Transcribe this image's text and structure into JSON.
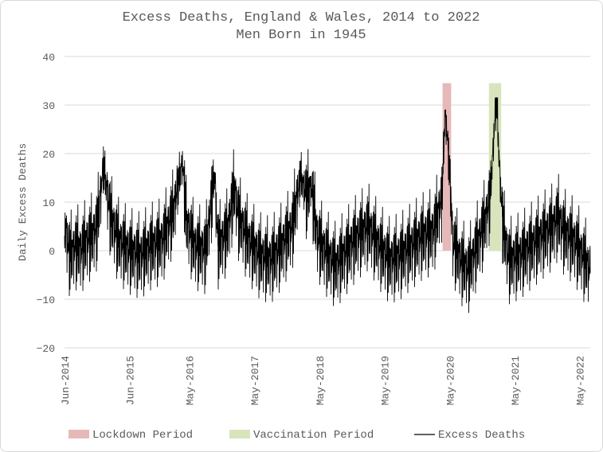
{
  "chart_data": {
    "type": "line",
    "title": "Excess Deaths, England & Wales, 2014 to 2022",
    "subtitle": "Men Born in 1945",
    "xlabel": "",
    "ylabel": "Daily Excess Deaths",
    "ylim": [
      -20,
      40
    ],
    "y_ticks": [
      "40",
      "30",
      "20",
      "10",
      "0",
      "−10",
      "−20"
    ],
    "y_tick_values": [
      40,
      30,
      20,
      10,
      0,
      -10,
      -20
    ],
    "x_range": [
      "2014-06-01",
      "2022-06-30"
    ],
    "x_ticks": [
      {
        "label": "Jun-2014",
        "date": "2014-06-01"
      },
      {
        "label": "Jun-2015",
        "date": "2015-06-01"
      },
      {
        "label": "May-2016",
        "date": "2016-05-01"
      },
      {
        "label": "May-2017",
        "date": "2017-05-01"
      },
      {
        "label": "May-2018",
        "date": "2018-05-01"
      },
      {
        "label": "May-2019",
        "date": "2019-05-01"
      },
      {
        "label": "May-2020",
        "date": "2020-05-01"
      },
      {
        "label": "May-2021",
        "date": "2021-05-01"
      },
      {
        "label": "May-2022",
        "date": "2022-05-01"
      }
    ],
    "grid": true,
    "legend_position": "bottom",
    "shaded_periods": [
      {
        "name": "Lockdown Period",
        "start": "2020-03-23",
        "end": "2020-05-10",
        "ymin": 0,
        "ymax": 34.5,
        "color": "#e6b8b7"
      },
      {
        "name": "Vaccination Period",
        "start": "2020-12-08",
        "end": "2021-02-15",
        "ymin": 0,
        "ymax": 34.5,
        "color": "#d8e4bc"
      }
    ],
    "series": [
      {
        "name": "Excess Deaths",
        "color": "#000000",
        "summary": {
          "baseline_mean": 0.5,
          "noise_sd": 3.5,
          "min": -14,
          "max": 31.5
        },
        "points": [
          {
            "date": "2014-06-01",
            "value": 5
          },
          {
            "date": "2014-07-01",
            "value": -2
          },
          {
            "date": "2014-08-01",
            "value": 0
          },
          {
            "date": "2014-09-01",
            "value": -1
          },
          {
            "date": "2014-10-01",
            "value": 1
          },
          {
            "date": "2014-11-01",
            "value": 2
          },
          {
            "date": "2014-12-01",
            "value": 4
          },
          {
            "date": "2015-01-05",
            "value": 17
          },
          {
            "date": "2015-01-20",
            "value": 13
          },
          {
            "date": "2015-02-15",
            "value": 6
          },
          {
            "date": "2015-04-01",
            "value": 1
          },
          {
            "date": "2015-06-01",
            "value": -1
          },
          {
            "date": "2015-08-01",
            "value": -2
          },
          {
            "date": "2015-10-01",
            "value": 0
          },
          {
            "date": "2015-12-01",
            "value": 1
          },
          {
            "date": "2016-02-01",
            "value": 7
          },
          {
            "date": "2016-03-10",
            "value": 15
          },
          {
            "date": "2016-03-25",
            "value": 18
          },
          {
            "date": "2016-04-15",
            "value": 5
          },
          {
            "date": "2016-06-01",
            "value": 0
          },
          {
            "date": "2016-08-01",
            "value": -1
          },
          {
            "date": "2016-09-20",
            "value": 15
          },
          {
            "date": "2016-10-10",
            "value": 0
          },
          {
            "date": "2016-12-01",
            "value": 3
          },
          {
            "date": "2017-01-10",
            "value": 12
          },
          {
            "date": "2017-02-01",
            "value": 6
          },
          {
            "date": "2017-04-01",
            "value": 1
          },
          {
            "date": "2017-06-01",
            "value": -2
          },
          {
            "date": "2017-08-01",
            "value": -3
          },
          {
            "date": "2017-10-01",
            "value": 0
          },
          {
            "date": "2017-12-01",
            "value": 4
          },
          {
            "date": "2018-01-15",
            "value": 15
          },
          {
            "date": "2018-02-20",
            "value": 10
          },
          {
            "date": "2018-03-15",
            "value": 13
          },
          {
            "date": "2018-04-20",
            "value": 2
          },
          {
            "date": "2018-06-01",
            "value": -1
          },
          {
            "date": "2018-08-01",
            "value": -4
          },
          {
            "date": "2018-10-01",
            "value": -1
          },
          {
            "date": "2018-12-01",
            "value": 2
          },
          {
            "date": "2019-02-01",
            "value": 4
          },
          {
            "date": "2019-04-01",
            "value": 0
          },
          {
            "date": "2019-06-01",
            "value": -3
          },
          {
            "date": "2019-08-01",
            "value": -2
          },
          {
            "date": "2019-10-01",
            "value": 0
          },
          {
            "date": "2019-12-01",
            "value": 2
          },
          {
            "date": "2020-02-01",
            "value": 3
          },
          {
            "date": "2020-03-20",
            "value": 10
          },
          {
            "date": "2020-04-05",
            "value": 27
          },
          {
            "date": "2020-04-15",
            "value": 25
          },
          {
            "date": "2020-05-01",
            "value": 16
          },
          {
            "date": "2020-05-20",
            "value": 1
          },
          {
            "date": "2020-07-01",
            "value": -3
          },
          {
            "date": "2020-08-15",
            "value": -5
          },
          {
            "date": "2020-10-01",
            "value": 0
          },
          {
            "date": "2020-11-15",
            "value": 5
          },
          {
            "date": "2020-12-15",
            "value": 10
          },
          {
            "date": "2021-01-12",
            "value": 28
          },
          {
            "date": "2021-01-20",
            "value": 31
          },
          {
            "date": "2021-02-05",
            "value": 17
          },
          {
            "date": "2021-02-25",
            "value": 4
          },
          {
            "date": "2021-04-01",
            "value": -3
          },
          {
            "date": "2021-06-01",
            "value": -2
          },
          {
            "date": "2021-08-01",
            "value": 0
          },
          {
            "date": "2021-10-01",
            "value": 2
          },
          {
            "date": "2021-12-01",
            "value": 4
          },
          {
            "date": "2022-01-01",
            "value": 6
          },
          {
            "date": "2022-02-01",
            "value": 3
          },
          {
            "date": "2022-04-01",
            "value": 1
          },
          {
            "date": "2022-06-01",
            "value": -3
          },
          {
            "date": "2022-06-30",
            "value": -5
          }
        ]
      }
    ]
  },
  "legend": {
    "items": [
      {
        "label": "Lockdown Period",
        "kind": "box",
        "color": "#e6b8b7"
      },
      {
        "label": "Vaccination Period",
        "kind": "box",
        "color": "#d8e4bc"
      },
      {
        "label": "Excess Deaths",
        "kind": "line",
        "color": "#000000"
      }
    ]
  },
  "colors": {
    "grid": "#d9d9d9",
    "text": "#595959",
    "line": "#000000"
  }
}
